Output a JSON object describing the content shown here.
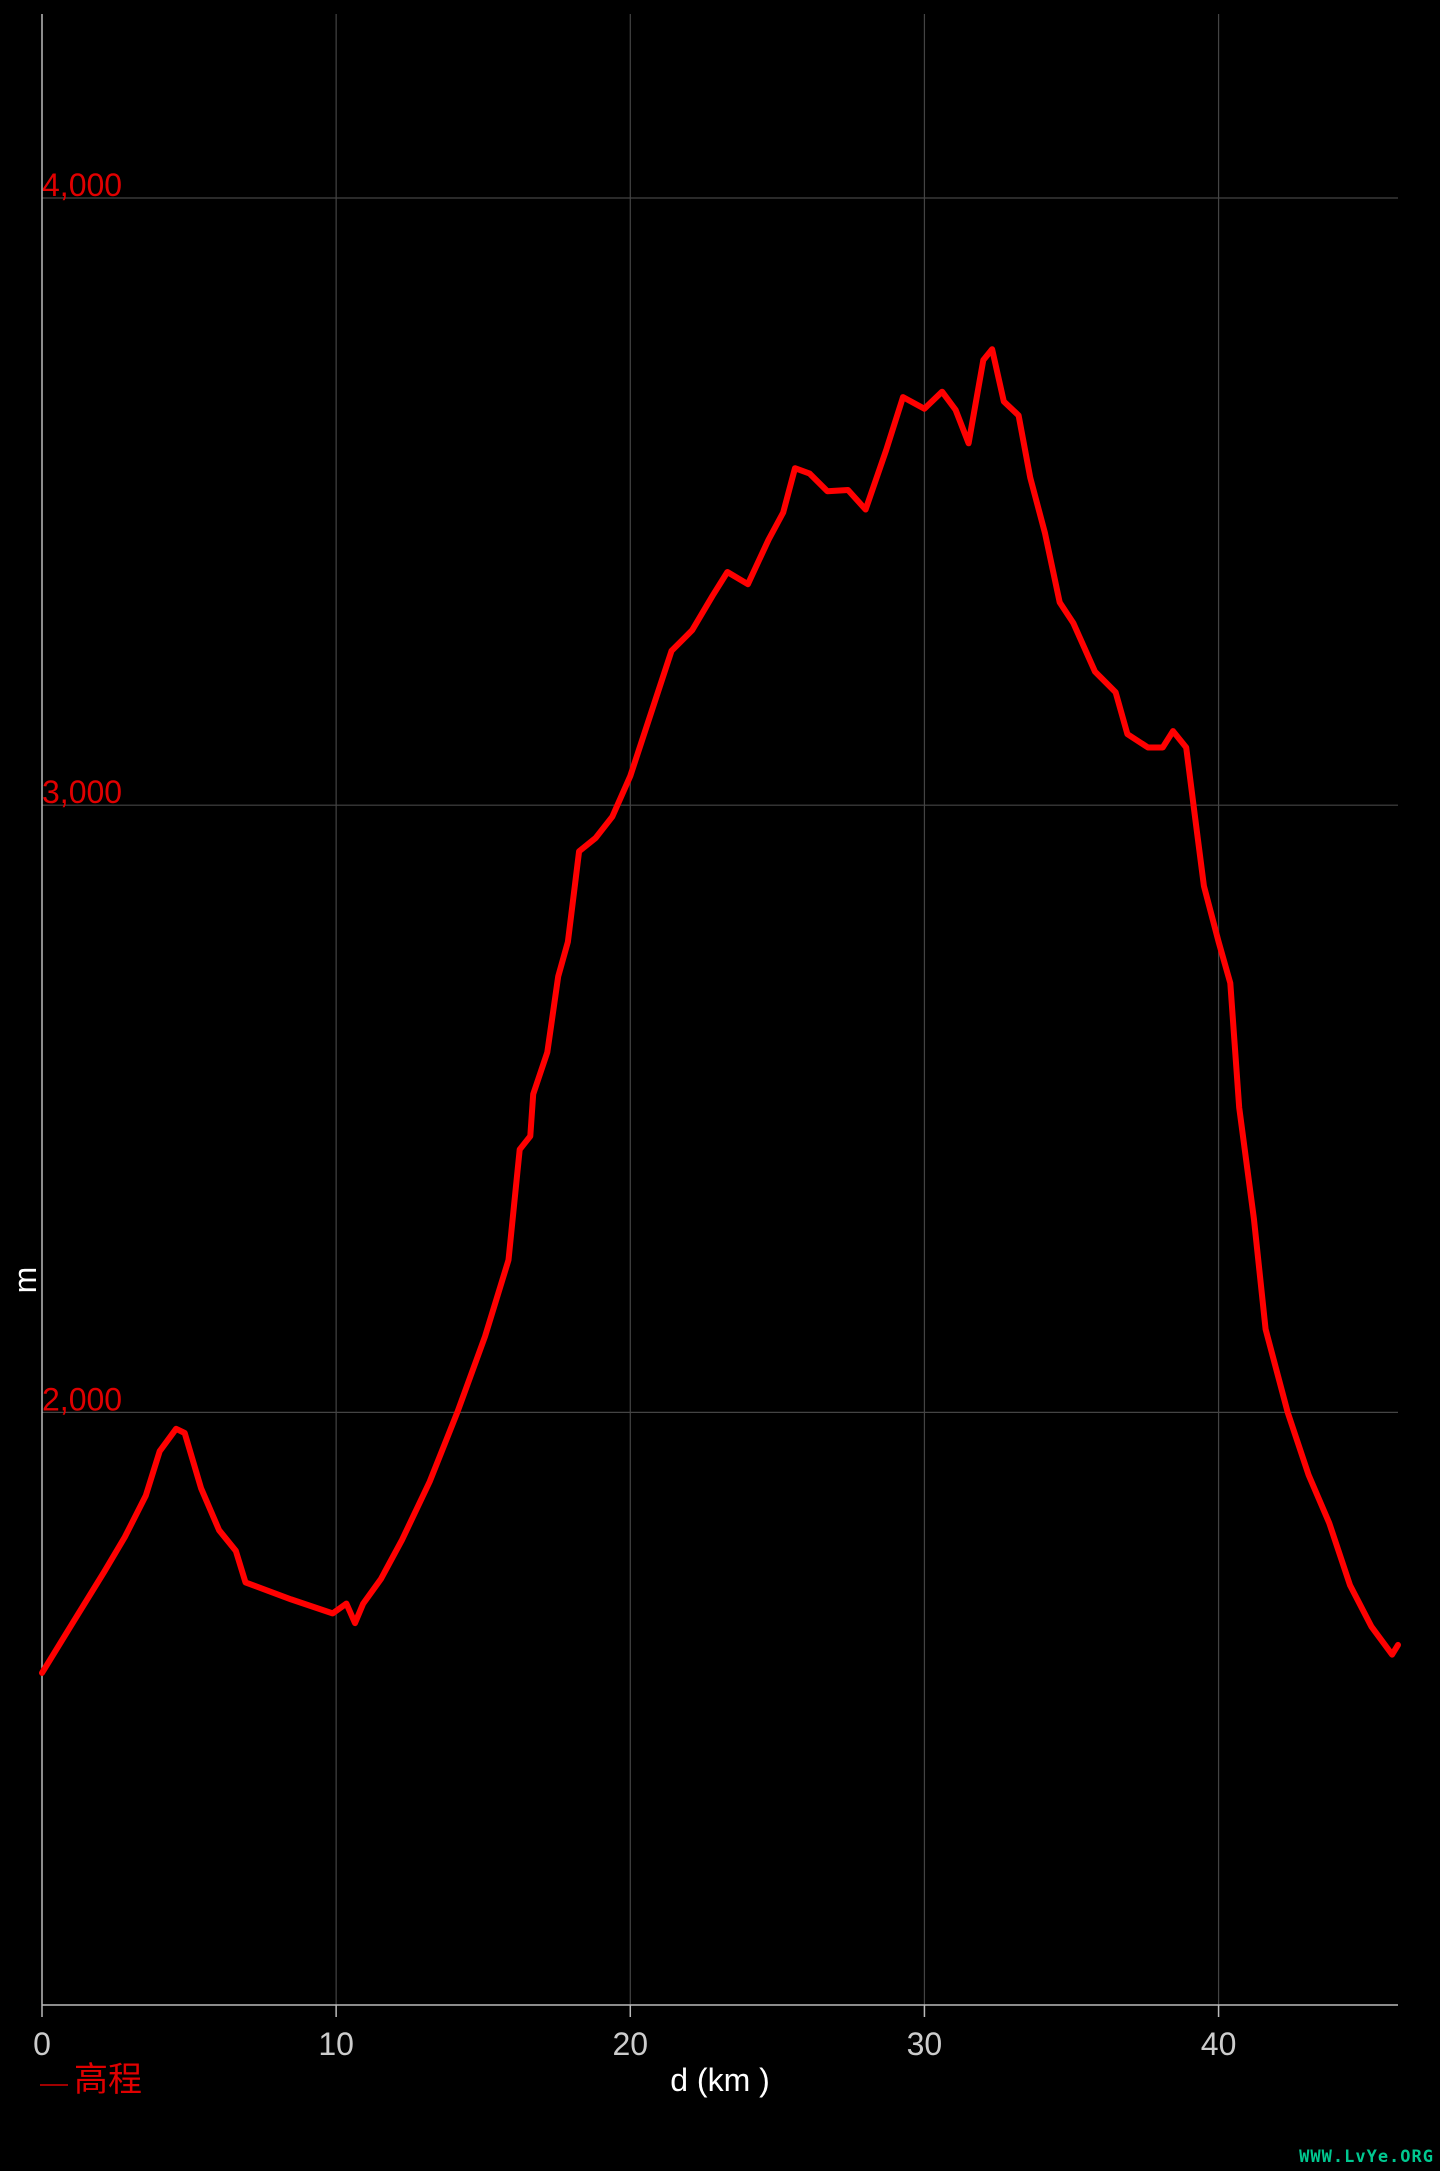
{
  "chart_data": {
    "type": "line",
    "xlabel": "d (km )",
    "ylabel": "m",
    "xlim": [
      0,
      46.1
    ],
    "ylim": [
      1024,
      4303
    ],
    "x_ticks": [
      0,
      10,
      20,
      30,
      40
    ],
    "x_tick_labels": [
      "0",
      "10",
      "20",
      "30",
      "40"
    ],
    "y_ticks": [
      2000,
      3000,
      4000
    ],
    "y_tick_labels": [
      "2,000",
      "3,000",
      "4,000"
    ],
    "grid": true,
    "legend_position": "bottom-left",
    "series": [
      {
        "name": "高程",
        "color": "#ff0000",
        "x": [
          0,
          1.04,
          2.12,
          2.82,
          3.53,
          4.0,
          4.56,
          4.85,
          5.41,
          6.02,
          6.59,
          6.92,
          8.47,
          9.88,
          10.35,
          10.64,
          10.92,
          11.53,
          12.24,
          13.18,
          14.12,
          15.06,
          15.86,
          16.24,
          16.6,
          16.7,
          17.18,
          17.55,
          17.88,
          18.26,
          18.82,
          19.39,
          20.0,
          20.7,
          21.4,
          22.1,
          22.8,
          23.3,
          24.0,
          24.7,
          25.2,
          25.6,
          26.1,
          26.7,
          27.4,
          28.0,
          28.7,
          29.27,
          30.0,
          30.6,
          31.06,
          31.5,
          32.0,
          32.3,
          32.7,
          33.2,
          33.6,
          34.1,
          34.6,
          35.06,
          35.8,
          36.5,
          36.9,
          37.6,
          38.1,
          38.45,
          38.9,
          39.2,
          39.5,
          40.0,
          40.4,
          40.7,
          41.2,
          41.6,
          42.35,
          43.06,
          43.76,
          44.47,
          45.2,
          45.9,
          46.1
        ],
        "y": [
          1571,
          1653,
          1738,
          1795,
          1863,
          1936,
          1973,
          1966,
          1875,
          1806,
          1772,
          1720,
          1692,
          1669,
          1685,
          1653,
          1685,
          1726,
          1790,
          1886,
          2000,
          2125,
          2251,
          2433,
          2455,
          2524,
          2593,
          2718,
          2775,
          2924,
          2946,
          2981,
          3048,
          3151,
          3254,
          3288,
          3345,
          3384,
          3364,
          3437,
          3482,
          3555,
          3546,
          3517,
          3519,
          3487,
          3585,
          3672,
          3653,
          3681,
          3651,
          3596,
          3733,
          3751,
          3665,
          3642,
          3539,
          3448,
          3334,
          3300,
          3220,
          3186,
          3117,
          3095,
          3095,
          3122,
          3095,
          2981,
          2867,
          2775,
          2707,
          2502,
          2319,
          2137,
          2000,
          1897,
          1818,
          1715,
          1647,
          1601,
          1617
        ]
      }
    ]
  },
  "watermark": "WWW.LvYe.ORG"
}
